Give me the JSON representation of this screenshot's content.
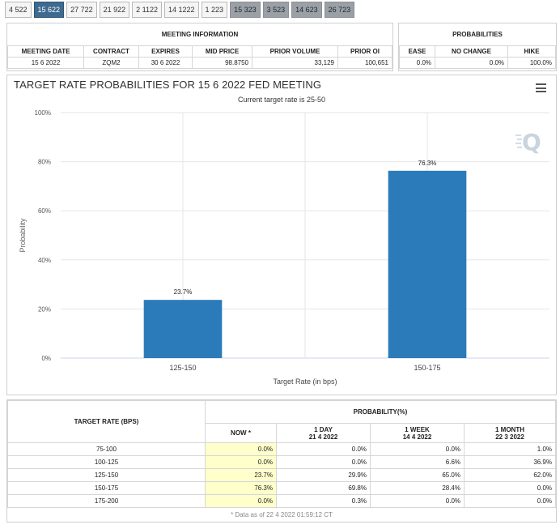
{
  "tabs": [
    {
      "label": "4 522",
      "state": "normal"
    },
    {
      "label": "15 622",
      "state": "active"
    },
    {
      "label": "27 722",
      "state": "normal"
    },
    {
      "label": "21 922",
      "state": "normal"
    },
    {
      "label": "2 1122",
      "state": "normal"
    },
    {
      "label": "14 1222",
      "state": "normal"
    },
    {
      "label": "1 223",
      "state": "normal"
    },
    {
      "label": "15 323",
      "state": "dim"
    },
    {
      "label": "3 523",
      "state": "dim"
    },
    {
      "label": "14 623",
      "state": "dim"
    },
    {
      "label": "26 723",
      "state": "dim"
    }
  ],
  "meeting_info": {
    "title": "MEETING INFORMATION",
    "headers": [
      "MEETING DATE",
      "CONTRACT",
      "EXPIRES",
      "MID PRICE",
      "PRIOR VOLUME",
      "PRIOR OI"
    ],
    "row": [
      "15 6 2022",
      "ZQM2",
      "30 6 2022",
      "98.8750",
      "33,129",
      "100,651"
    ]
  },
  "probabilities": {
    "title": "PROBABILITIES",
    "headers": [
      "EASE",
      "NO CHANGE",
      "HIKE"
    ],
    "row": [
      "0.0%",
      "0.0%",
      "100.0%"
    ]
  },
  "chart_data": {
    "type": "bar",
    "title": "TARGET RATE PROBABILITIES FOR 15 6 2022 FED MEETING",
    "subtitle": "Current target rate is 25-50",
    "categories": [
      "125-150",
      "150-175"
    ],
    "values": [
      23.7,
      76.3
    ],
    "value_labels": [
      "23.7%",
      "76.3%"
    ],
    "xlabel": "Target Rate (in bps)",
    "ylabel": "Probability",
    "ylim": [
      0,
      100
    ],
    "yticks": [
      0,
      20,
      40,
      60,
      80,
      100
    ],
    "ytick_labels": [
      "0%",
      "20%",
      "40%",
      "60%",
      "80%",
      "100%"
    ],
    "bar_color": "#2b7bba",
    "grid": true,
    "legend": "none"
  },
  "prob_table": {
    "col_target": "TARGET RATE (BPS)",
    "group_header": "PROBABILITY(%)",
    "col_now": "NOW *",
    "col_day": "1 DAY",
    "col_day_date": "21 4 2022",
    "col_week": "1 WEEK",
    "col_week_date": "14 4 2022",
    "col_month": "1 MONTH",
    "col_month_date": "22 3 2022",
    "rows": [
      [
        "75-100",
        "0.0%",
        "0.0%",
        "0.0%",
        "1.0%"
      ],
      [
        "100-125",
        "0.0%",
        "0.0%",
        "6.6%",
        "36.9%"
      ],
      [
        "125-150",
        "23.7%",
        "29.9%",
        "65.0%",
        "62.0%"
      ],
      [
        "150-175",
        "76.3%",
        "69.8%",
        "28.4%",
        "0.0%"
      ],
      [
        "175-200",
        "0.0%",
        "0.3%",
        "0.0%",
        "0.0%"
      ]
    ],
    "footnote": "* Data as of 22 4 2022 01:59:12 CT"
  }
}
